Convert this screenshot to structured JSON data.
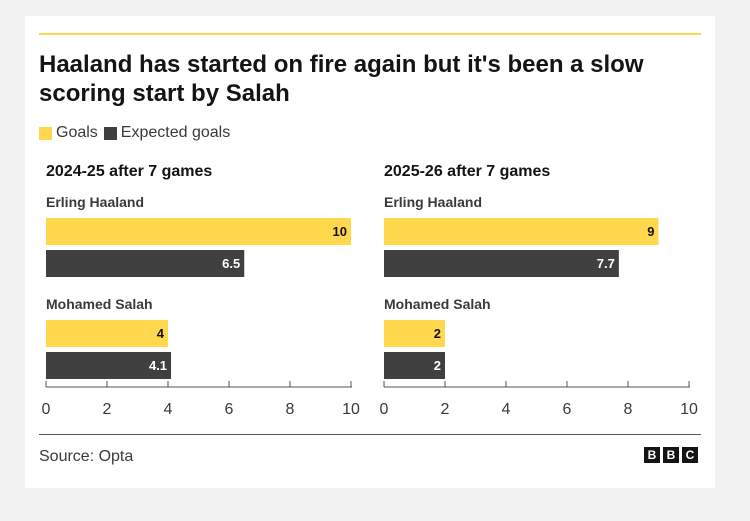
{
  "title": "Haaland has started on fire again but it's been a slow scoring start by Salah",
  "legend": [
    {
      "label": "Goals",
      "color": "#ffd84d"
    },
    {
      "label": "Expected goals",
      "color": "#404040"
    }
  ],
  "source": "Source: Opta",
  "logo": [
    "B",
    "B",
    "C"
  ],
  "colors": {
    "goals": "#ffd84d",
    "xg": "#404040",
    "accent": "#ffd84d"
  },
  "chart_data": [
    {
      "type": "bar",
      "orientation": "horizontal",
      "title": "2024-25 after 7 games",
      "categories": [
        "Erling Haaland",
        "Mohamed Salah"
      ],
      "series": [
        {
          "name": "Goals",
          "values": [
            10,
            4
          ]
        },
        {
          "name": "Expected goals",
          "values": [
            6.5,
            4.1
          ]
        }
      ],
      "xlim": [
        0,
        10
      ],
      "xticks": [
        0,
        2,
        4,
        6,
        8,
        10
      ]
    },
    {
      "type": "bar",
      "orientation": "horizontal",
      "title": "2025-26 after 7 games",
      "categories": [
        "Erling Haaland",
        "Mohamed Salah"
      ],
      "series": [
        {
          "name": "Goals",
          "values": [
            9,
            2
          ]
        },
        {
          "name": "Expected goals",
          "values": [
            7.7,
            2
          ]
        }
      ],
      "xlim": [
        0,
        10
      ],
      "xticks": [
        0,
        2,
        4,
        6,
        8,
        10
      ]
    }
  ]
}
